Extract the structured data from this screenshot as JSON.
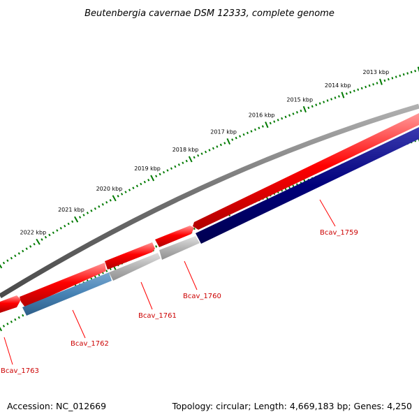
{
  "title": "Beutenbergia cavernae DSM 12333, complete genome",
  "footer": {
    "accession": "Accession: NC_012669",
    "topology": "Topology: circular; Length: 4,669,183 bp; Genes: 4,250"
  },
  "colors": {
    "backbone": "#7a7a7a",
    "forward_gene": "#ff0000",
    "reverse_gene": "#00007a",
    "grey_gene": "#b4b4b4",
    "blue_gene": "#4682b4",
    "label": "#cc0000",
    "tick": "#007a00"
  },
  "scale": {
    "tick_labels": [
      "2022 kbp",
      "2021 kbp",
      "2020 kbp",
      "2019 kbp",
      "2018 kbp",
      "2017 kbp",
      "2016 kbp",
      "2015 kbp",
      "2014 kbp",
      "2013 kbp"
    ]
  },
  "genes": [
    {
      "label": "Bcav_1763",
      "strand": "forward",
      "color": "forward_gene"
    },
    {
      "label": "Bcav_1762",
      "strand": "reverse",
      "color": "blue_gene"
    },
    {
      "label": "Bcav_1761",
      "strand": "reverse",
      "color": "grey_gene"
    },
    {
      "label": "Bcav_1760",
      "strand": "reverse",
      "color": "grey_gene"
    },
    {
      "label": "Bcav_1759",
      "strand": "reverse",
      "color": "reverse_gene"
    }
  ]
}
